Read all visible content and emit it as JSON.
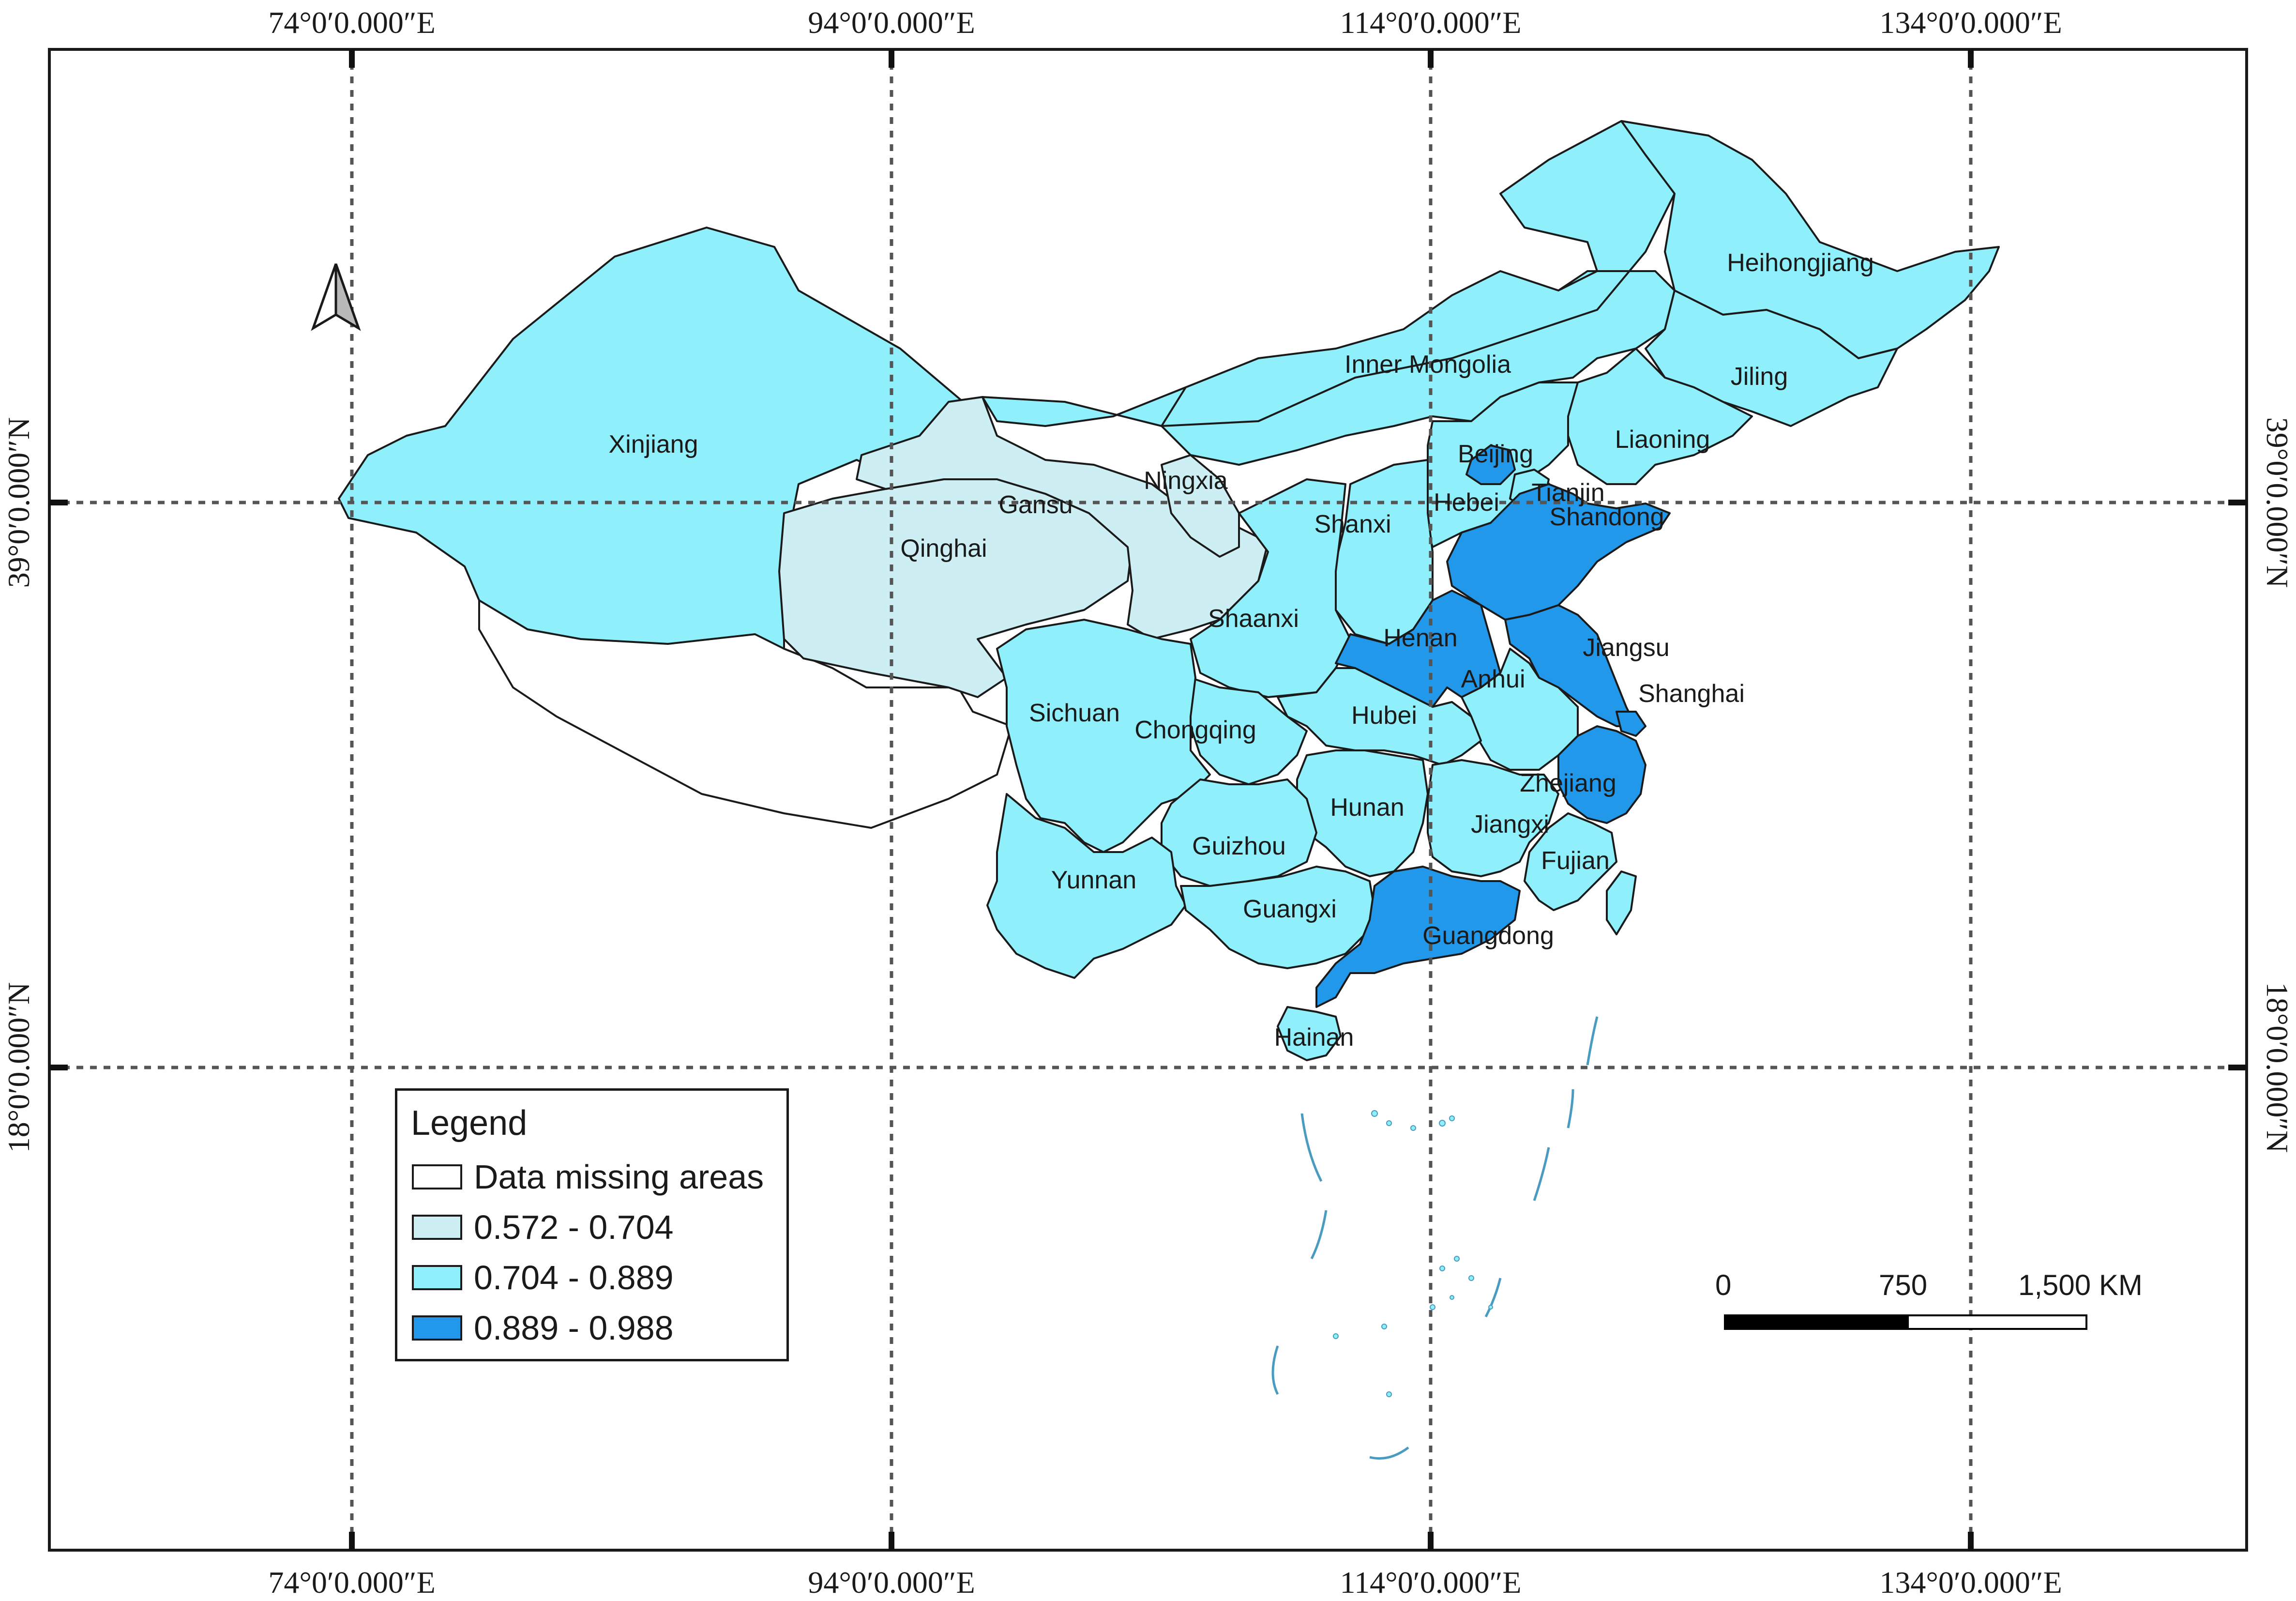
{
  "map": {
    "legend_title": "Legend",
    "legend_items": [
      {
        "label": "Data missing areas",
        "color": "#ffffff"
      },
      {
        "label": "0.572 - 0.704",
        "color": "#cdeff4"
      },
      {
        "label": "0.704 - 0.889",
        "color": "#8feffb"
      },
      {
        "label": "0.889 - 0.988",
        "color": "#2198ea"
      }
    ],
    "longitude_labels": [
      "74°0′0.000″E",
      "94°0′0.000″E",
      "114°0′0.000″E",
      "134°0′0.000″E"
    ],
    "latitude_labels": [
      "39°0′0.000″N",
      "18°0′0.000″N"
    ],
    "scale_bar": {
      "zero": "0",
      "mid": "750",
      "end": "1,500 KM"
    },
    "north_arrow": "north-arrow-icon",
    "regions": {
      "xinjiang": {
        "label": "Xinjiang",
        "class": 2
      },
      "qinghai": {
        "label": "Qinghai",
        "class": 1
      },
      "gansu": {
        "label": "Gansu",
        "class": 1
      },
      "ningxia": {
        "label": "Ningxia",
        "class": 1
      },
      "inner_mongolia": {
        "label": "Inner Mongolia",
        "class": 2
      },
      "heihongjiang": {
        "label": "Heihongjiang",
        "class": 2
      },
      "jiling": {
        "label": "Jiling",
        "class": 2
      },
      "liaoning": {
        "label": "Liaoning",
        "class": 2
      },
      "beijing": {
        "label": "Beijing",
        "class": 3
      },
      "tianjin": {
        "label": "Tianjin",
        "class": 2
      },
      "hebei": {
        "label": "Hebei",
        "class": 2
      },
      "shanxi": {
        "label": "Shanxi",
        "class": 2
      },
      "shandong": {
        "label": "Shandong",
        "class": 3
      },
      "shaanxi": {
        "label": "Shaanxi",
        "class": 2
      },
      "henan": {
        "label": "Henan",
        "class": 3
      },
      "jiangsu": {
        "label": "Jiangsu",
        "class": 3
      },
      "anhui": {
        "label": "Anhui",
        "class": 2
      },
      "shanghai": {
        "label": "Shanghai",
        "class": 3
      },
      "sichuan": {
        "label": "Sichuan",
        "class": 2
      },
      "chongqing": {
        "label": "Chongqing",
        "class": 2
      },
      "hubei": {
        "label": "Hubei",
        "class": 2
      },
      "zhejiang": {
        "label": "Zhejiang",
        "class": 3
      },
      "hunan": {
        "label": "Hunan",
        "class": 2
      },
      "jiangxi": {
        "label": "Jiangxi",
        "class": 2
      },
      "guizhou": {
        "label": "Guizhou",
        "class": 2
      },
      "fujian": {
        "label": "Fujian",
        "class": 2
      },
      "yunnan": {
        "label": "Yunnan",
        "class": 2
      },
      "guangxi": {
        "label": "Guangxi",
        "class": 2
      },
      "guangdong": {
        "label": "Guangdong",
        "class": 3
      },
      "hainan": {
        "label": "Hainan",
        "class": 2
      },
      "tibet": {
        "class": 0
      },
      "taiwan": {
        "class": 2
      }
    }
  }
}
